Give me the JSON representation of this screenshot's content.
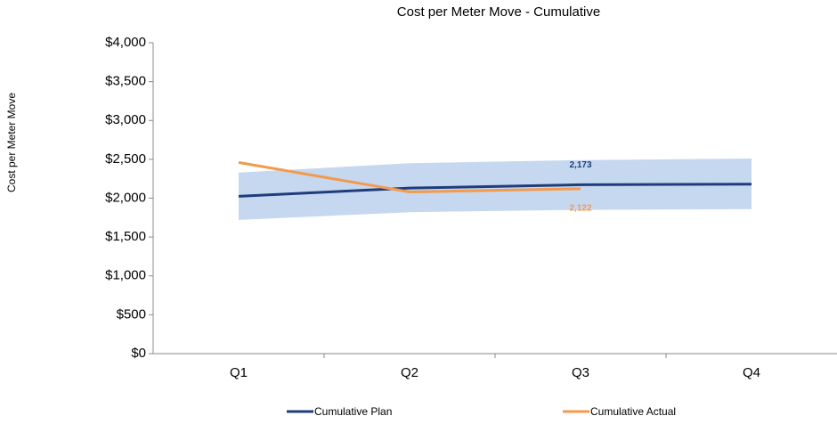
{
  "chart_data": {
    "type": "line",
    "title": "Cost per Meter Move - Cumulative",
    "y_label": "Cost per Meter Move",
    "categories": [
      "Q1",
      "Q2",
      "Q3",
      "Q4"
    ],
    "series": [
      {
        "name": "Cumulative Plan",
        "color": "#1f3d7a",
        "values": [
          2025,
          2130,
          2173,
          2180
        ],
        "value_labels": [
          null,
          null,
          "2,173",
          null
        ]
      },
      {
        "name": "Cumulative Actual",
        "color": "#f39b4b",
        "values": [
          2460,
          2080,
          2122,
          null
        ],
        "value_labels": [
          null,
          null,
          "2,122",
          null
        ]
      }
    ],
    "band": {
      "color": "#c6d7f0",
      "lower": [
        1720,
        1820,
        1850,
        1860
      ],
      "upper": [
        2330,
        2450,
        2490,
        2510
      ]
    },
    "ylim": [
      0,
      4000
    ],
    "yticks": [
      {
        "value": 0,
        "label": "$0"
      },
      {
        "value": 500,
        "label": "$500"
      },
      {
        "value": 1000,
        "label": "$1,000"
      },
      {
        "value": 1500,
        "label": "$1,500"
      },
      {
        "value": 2000,
        "label": "$2,000"
      },
      {
        "value": 2500,
        "label": "$2,500"
      },
      {
        "value": 3000,
        "label": "$3,000"
      },
      {
        "value": 3500,
        "label": "$3,500"
      },
      {
        "value": 4000,
        "label": "$4,000"
      }
    ]
  }
}
